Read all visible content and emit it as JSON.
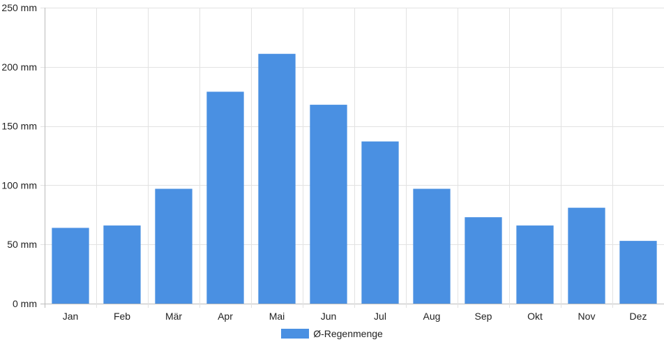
{
  "chart_data": {
    "type": "bar",
    "categories": [
      "Jan",
      "Feb",
      "Mär",
      "Apr",
      "Mai",
      "Jun",
      "Jul",
      "Aug",
      "Sep",
      "Okt",
      "Nov",
      "Dez"
    ],
    "series": [
      {
        "name": "Ø-Regenmenge",
        "values": [
          64,
          66,
          97,
          179,
          211,
          168,
          137,
          97,
          73,
          66,
          81,
          53
        ],
        "color": "#4a90e2"
      }
    ],
    "y_unit": "mm",
    "ylim": [
      0,
      250
    ],
    "yticks": [
      0,
      50,
      100,
      150,
      200,
      250
    ],
    "grid": true,
    "legend_position": "bottom"
  }
}
